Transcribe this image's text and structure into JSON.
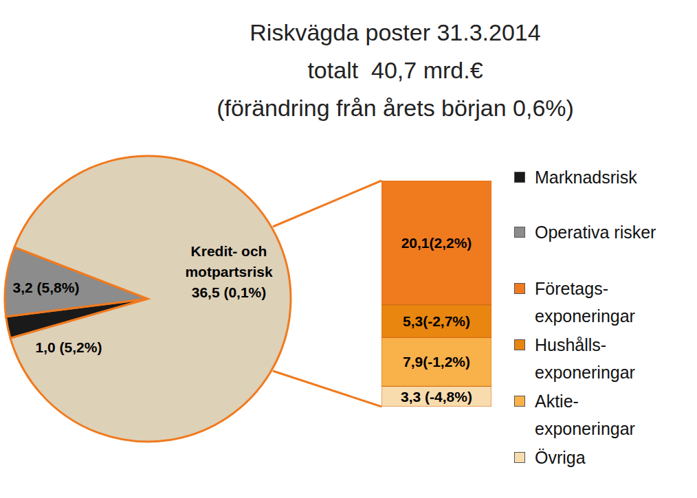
{
  "chart_data": [
    {
      "type": "pie",
      "title": "Riskvägda poster 31.3.2014\ntotalt  40,7 mrd.€\n(förändring från årets början 0,6%)",
      "categories": [
        "Marknadsrisk",
        "Operativa risker",
        "Kredit- och\nmotpartsrisk"
      ],
      "values": [
        1.0,
        3.2,
        36.5
      ],
      "value_labels": [
        "1,0 (5,2%)",
        "3,2 (5,8%)",
        "36,5 (0,1%)"
      ],
      "colors": [
        "#1a1a1a",
        "#8c8c8c",
        "#ddd1b8"
      ],
      "data_labels": true,
      "legend": "right"
    },
    {
      "type": "bar",
      "stacked": true,
      "data_labels": true,
      "tick_labels": false,
      "legend": "right",
      "categories": [
        null
      ],
      "ylim": [
        0,
        36.6
      ],
      "series": [
        {
          "name": "Företags-\nexponeringar",
          "color": "#f07a1e",
          "values": [
            20.1
          ],
          "value_labels": [
            "20,1(2,2%)"
          ]
        },
        {
          "name": "Hushålls-\nexponeringar",
          "color": "#e8860f",
          "values": [
            5.3
          ],
          "value_labels": [
            "5,3(-2,7%)"
          ]
        },
        {
          "name": "Aktie-\nexponeringar",
          "color": "#f9b14a",
          "values": [
            7.9
          ],
          "value_labels": [
            "7,9(-1,2%)"
          ]
        },
        {
          "name": "Övriga",
          "color": "#f8dcae",
          "values": [
            3.3
          ],
          "value_labels": [
            "3,3 (-4,8%)"
          ]
        }
      ]
    }
  ]
}
